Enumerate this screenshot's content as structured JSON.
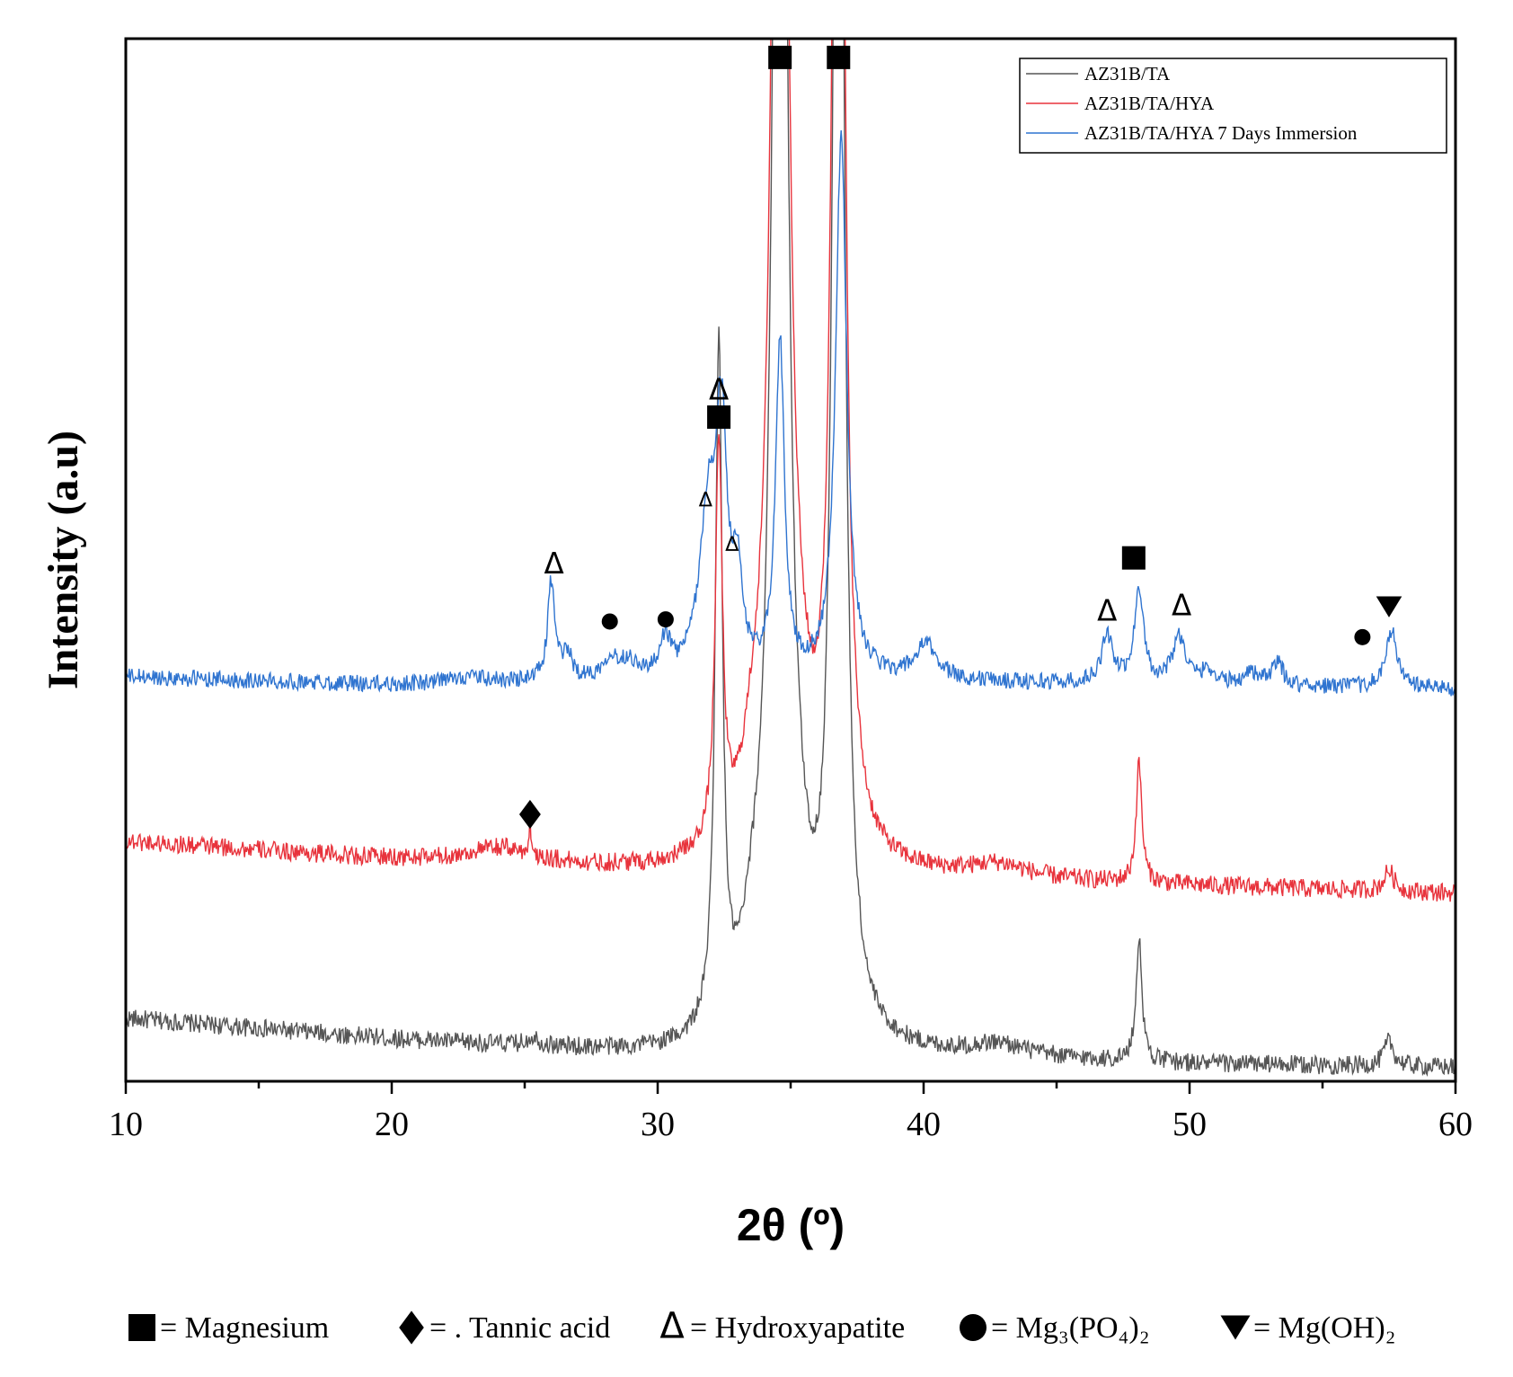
{
  "chart_data": {
    "type": "line",
    "title": "",
    "xlabel": "2θ (º)",
    "ylabel": "Intensity (a.u)",
    "xlim": [
      10,
      60
    ],
    "ylim": [
      0,
      100
    ],
    "x_ticks": [
      10,
      20,
      30,
      40,
      50,
      60
    ],
    "x_minor_tick_step": 5,
    "y_ticks_shown": false,
    "grid": false,
    "legend_position": "top-right",
    "series": [
      {
        "name": "AZ31B/TA",
        "color": "#555555",
        "baseline": [
          [
            10,
            6.0
          ],
          [
            20,
            4.0
          ],
          [
            30,
            2.4
          ],
          [
            40,
            2.2
          ],
          [
            50,
            1.6
          ],
          [
            60,
            1.3
          ]
        ],
        "noise": 0.9,
        "peaks": [
          [
            25.3,
            0.9,
            0.25
          ],
          [
            32.3,
            65,
            0.16
          ],
          [
            33.6,
            6,
            0.5
          ],
          [
            34.6,
            175,
            0.3
          ],
          [
            35.4,
            5,
            0.6
          ],
          [
            36.8,
            175,
            0.22
          ],
          [
            42.8,
            1.2,
            1.3
          ],
          [
            48.1,
            12,
            0.13
          ],
          [
            57.5,
            2.4,
            0.22
          ]
        ]
      },
      {
        "name": "AZ31B/TA/HYA",
        "color": "#e8333c",
        "baseline": [
          [
            10,
            23.0
          ],
          [
            20,
            21.2
          ],
          [
            30,
            20.0
          ],
          [
            40,
            19.4
          ],
          [
            50,
            18.7
          ],
          [
            60,
            18.0
          ]
        ],
        "noise": 0.9,
        "peaks": [
          [
            24.1,
            1.5,
            1.5
          ],
          [
            25.2,
            3,
            0.05
          ],
          [
            32.3,
            38,
            0.16
          ],
          [
            33.6,
            6,
            0.5
          ],
          [
            34.6,
            175,
            0.3
          ],
          [
            35.4,
            5,
            0.6
          ],
          [
            36.8,
            175,
            0.22
          ],
          [
            42.8,
            1.3,
            1.3
          ],
          [
            48.1,
            11.5,
            0.13
          ],
          [
            57.5,
            2.0,
            0.22
          ]
        ]
      },
      {
        "name": "AZ31B/TA/HYA 7 Days Immersion",
        "color": "#2f74d0",
        "baseline": [
          [
            10,
            38.8
          ],
          [
            20,
            38.0
          ],
          [
            30,
            38.4
          ],
          [
            40,
            38.3
          ],
          [
            50,
            38.0
          ],
          [
            60,
            37.6
          ]
        ],
        "noise": 0.8,
        "peaks": [
          [
            22.8,
            0.6,
            0.8
          ],
          [
            26.0,
            9.5,
            0.16
          ],
          [
            26.6,
            2.5,
            0.2
          ],
          [
            28.2,
            2.0,
            0.3
          ],
          [
            28.9,
            1.6,
            0.4
          ],
          [
            30.3,
            3.5,
            0.2
          ],
          [
            31.9,
            15,
            0.4
          ],
          [
            32.4,
            22,
            0.25
          ],
          [
            33.0,
            8,
            0.22
          ],
          [
            34.6,
            32,
            0.2
          ],
          [
            36.9,
            52,
            0.25
          ],
          [
            40.1,
            3.3,
            0.5
          ],
          [
            46.9,
            4.5,
            0.25
          ],
          [
            48.1,
            9.2,
            0.2
          ],
          [
            49.6,
            4.5,
            0.3
          ],
          [
            50.7,
            1.3,
            0.3
          ],
          [
            52.3,
            1.3,
            0.3
          ],
          [
            53.3,
            2.2,
            0.25
          ],
          [
            57.6,
            5.5,
            0.25
          ]
        ]
      }
    ],
    "legend": [
      "AZ31B/TA",
      "AZ31B/TA/HYA",
      "AZ31B/TA/HYA 7 Days Immersion"
    ],
    "annotations": [
      {
        "symbol": "square",
        "x": 34.6,
        "y": 98.2
      },
      {
        "symbol": "square",
        "x": 36.8,
        "y": 98.2
      },
      {
        "symbol": "square",
        "x": 32.3,
        "y": 63.7
      },
      {
        "symbol": "square",
        "x": 47.9,
        "y": 50.2
      },
      {
        "symbol": "diamond",
        "x": 25.2,
        "y": 25.6
      },
      {
        "symbol": "triangle-open",
        "x": 32.3,
        "y": 66.2,
        "label": "Δ"
      },
      {
        "symbol": "triangle-open",
        "x": 31.8,
        "y": 55.7,
        "label": "Δ",
        "small": true
      },
      {
        "symbol": "triangle-open",
        "x": 32.8,
        "y": 51.4,
        "label": "Δ",
        "small": true
      },
      {
        "symbol": "triangle-open",
        "x": 26.1,
        "y": 49.5,
        "label": "Δ"
      },
      {
        "symbol": "triangle-open",
        "x": 46.9,
        "y": 45.0,
        "label": "Δ"
      },
      {
        "symbol": "triangle-open",
        "x": 49.7,
        "y": 45.5,
        "label": "Δ"
      },
      {
        "symbol": "circle",
        "x": 28.2,
        "y": 44.1
      },
      {
        "symbol": "circle",
        "x": 30.3,
        "y": 44.3
      },
      {
        "symbol": "circle",
        "x": 56.5,
        "y": 42.6
      },
      {
        "symbol": "triangle-down",
        "x": 57.5,
        "y": 45.5
      }
    ],
    "marker_key": [
      {
        "symbol": "square",
        "text": "= Magnesium"
      },
      {
        "symbol": "diamond",
        "text": "= . Tannic acid"
      },
      {
        "symbol": "triangle-open",
        "glyph": "Δ",
        "text": "= Hydroxyapatite"
      },
      {
        "symbol": "circle",
        "text": "= Mg₃(PO₄)₂"
      },
      {
        "symbol": "triangle-down",
        "text": "= Mg(OH)₂"
      }
    ]
  }
}
